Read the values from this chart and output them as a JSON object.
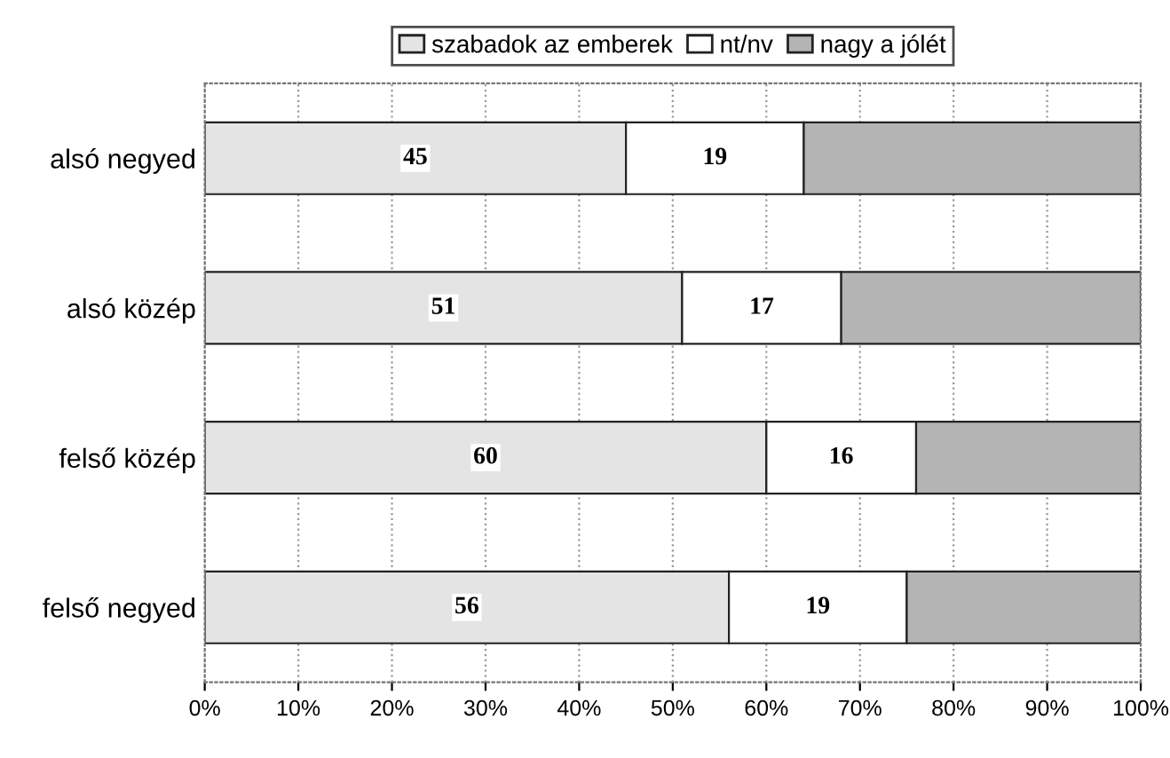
{
  "chart_data": {
    "type": "bar",
    "orientation": "horizontal",
    "stacked": true,
    "categories": [
      "alsó negyed",
      "alsó közép",
      "felső közép",
      "felső negyed"
    ],
    "series": [
      {
        "name": "szabadok az emberek",
        "color": "#e4e4e4",
        "values": [
          45,
          51,
          60,
          56
        ],
        "value_labels": [
          "45",
          "51",
          "60",
          "56"
        ]
      },
      {
        "name": "nt/nv",
        "color": "#ffffff",
        "values": [
          19,
          17,
          16,
          19
        ],
        "value_labels": [
          "19",
          "17",
          "16",
          "19"
        ]
      },
      {
        "name": "nagy a jólét",
        "color": "#b4b4b4",
        "values": [
          36,
          32,
          24,
          25
        ]
      }
    ],
    "xlim": [
      0,
      100
    ],
    "xticks": [
      {
        "value": 0,
        "label": "0%"
      },
      {
        "value": 10,
        "label": "10%"
      },
      {
        "value": 20,
        "label": "20%"
      },
      {
        "value": 30,
        "label": "30%"
      },
      {
        "value": 40,
        "label": "40%"
      },
      {
        "value": 50,
        "label": "50%"
      },
      {
        "value": 60,
        "label": "60%"
      },
      {
        "value": 70,
        "label": "70%"
      },
      {
        "value": 80,
        "label": "80%"
      },
      {
        "value": 90,
        "label": "90%"
      },
      {
        "value": 100,
        "label": "100%"
      }
    ],
    "grid": "x",
    "legend": "top"
  }
}
